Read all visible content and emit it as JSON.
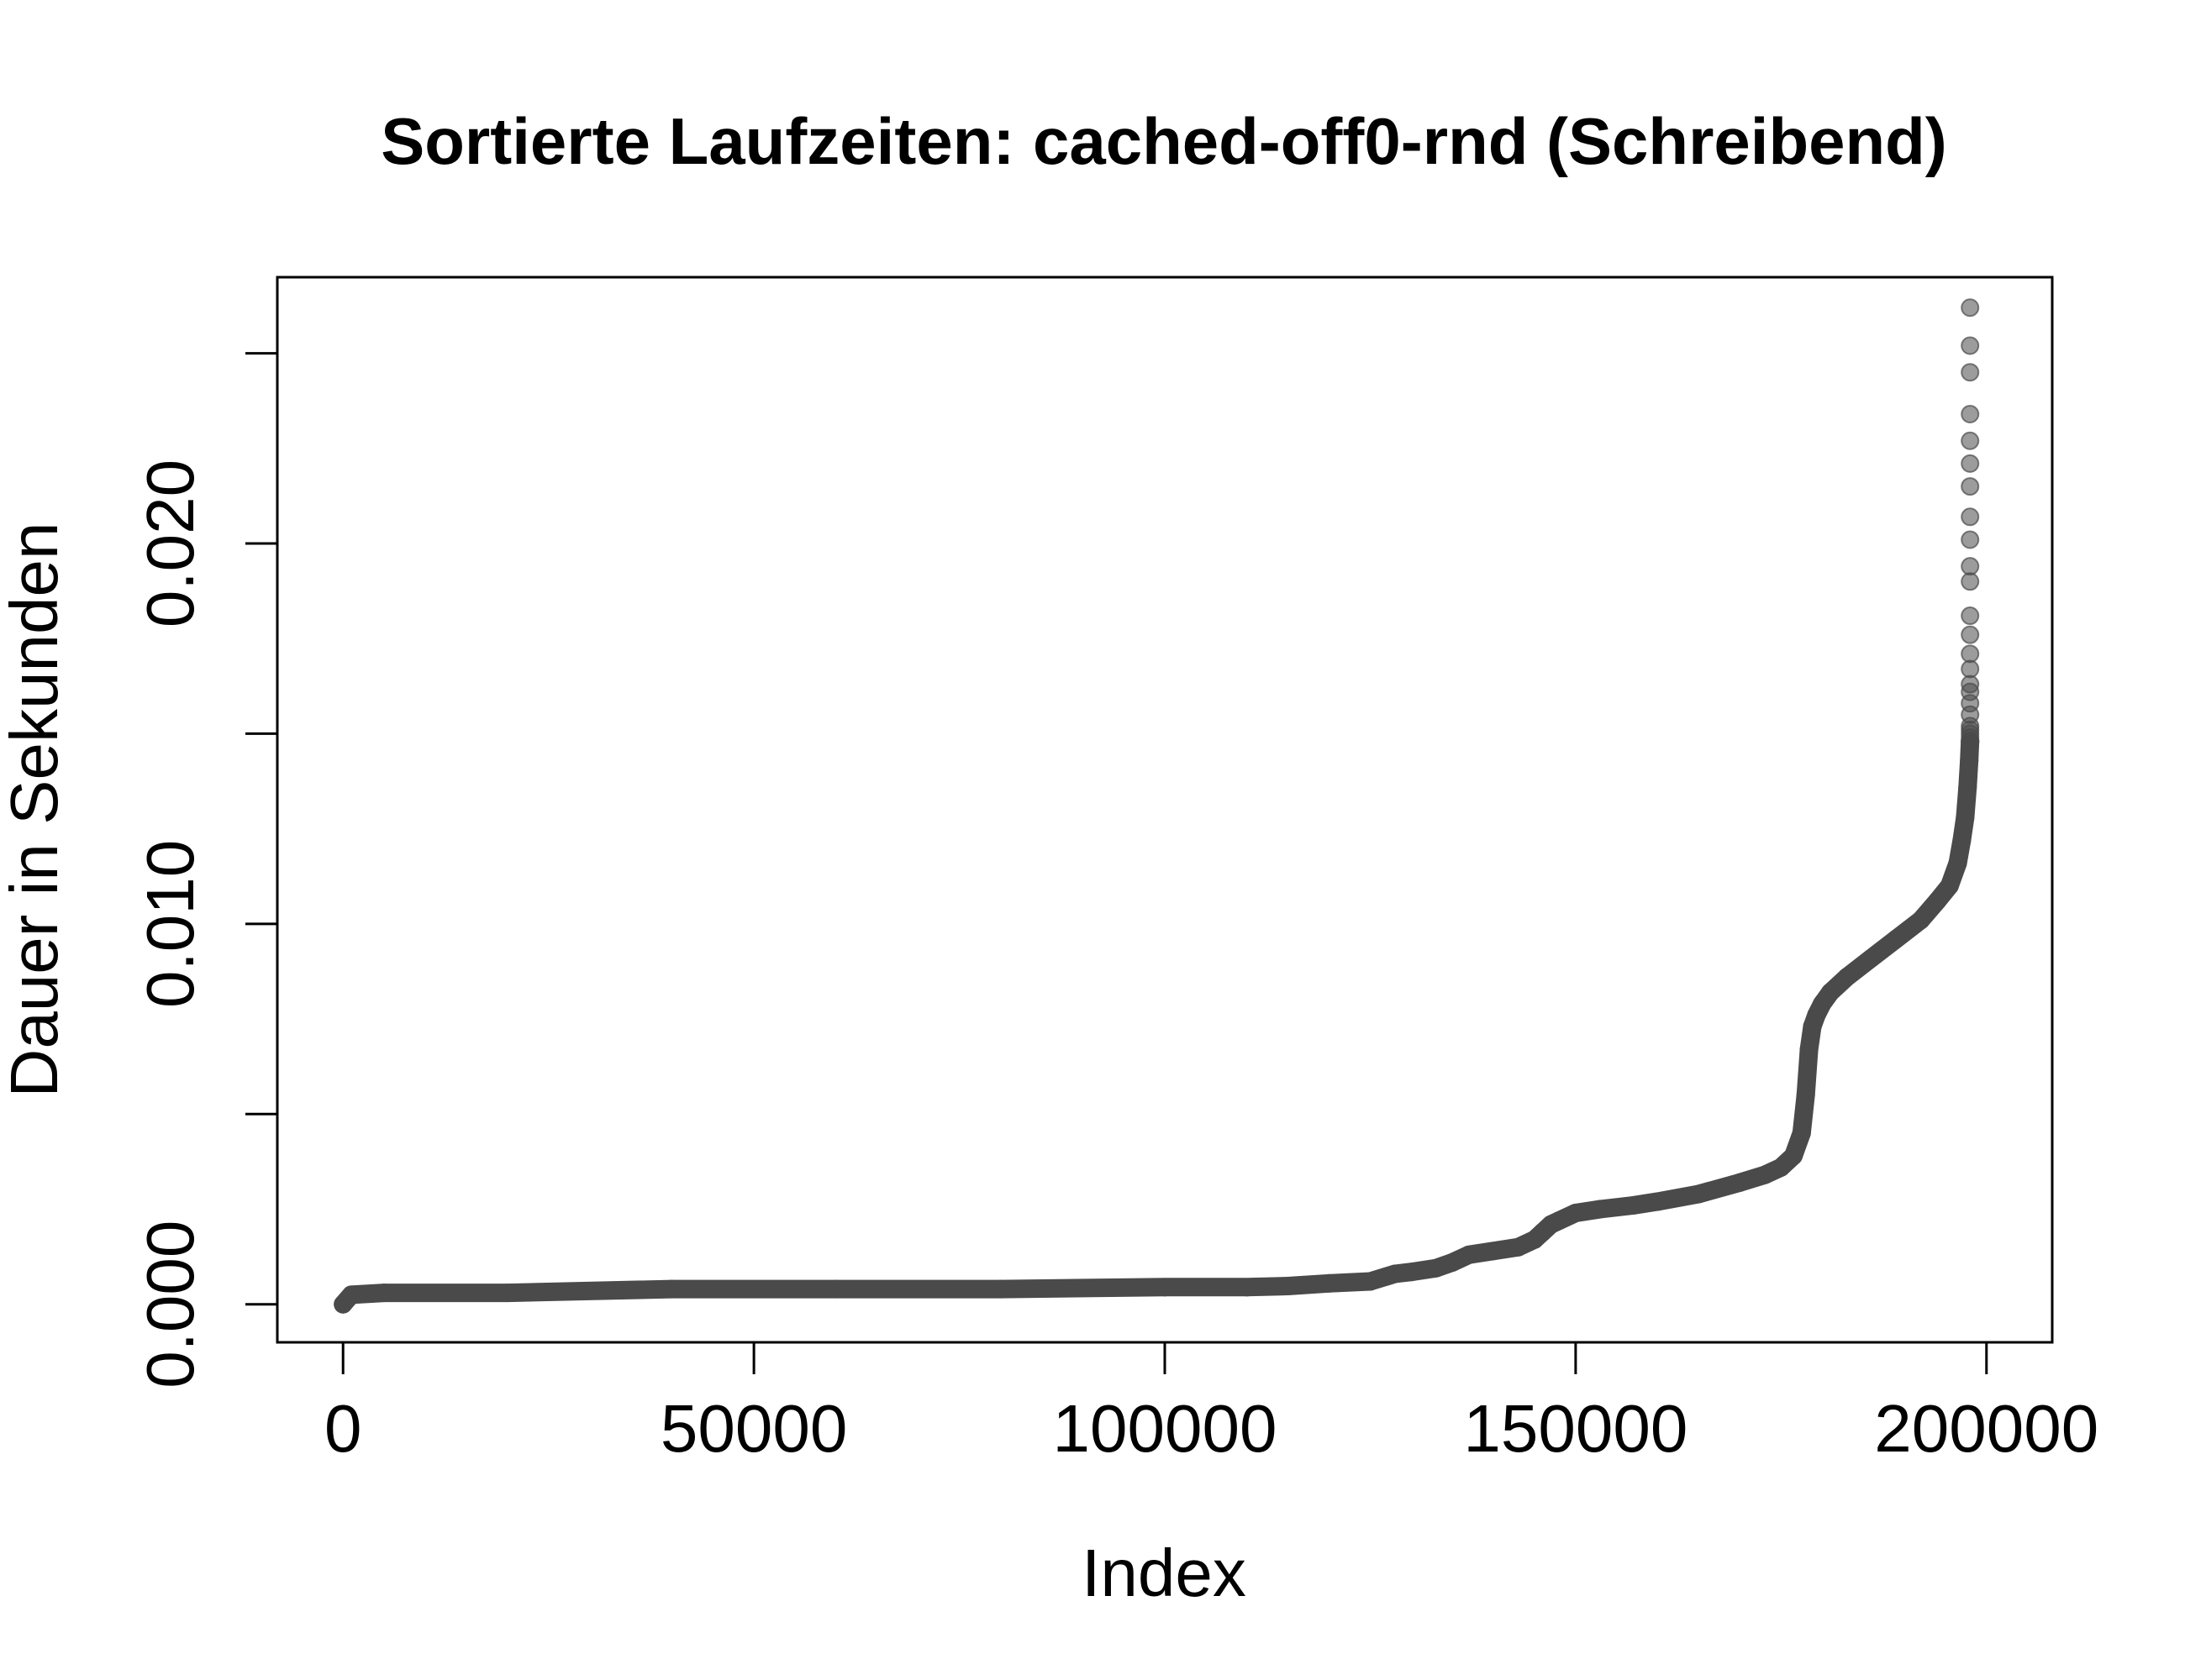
{
  "chart_data": {
    "type": "scatter",
    "title": "Sortierte Laufzeiten: cached-off0-rnd (Schreibend)",
    "xlabel": "Index",
    "ylabel": "Dauer in Sekunden",
    "xlim": [
      -8000,
      208000
    ],
    "ylim": [
      -0.001,
      0.027
    ],
    "x_ticks": [
      0,
      50000,
      100000,
      150000,
      200000
    ],
    "x_tick_labels": [
      "0",
      "50000",
      "100000",
      "150000",
      "200000"
    ],
    "y_ticks": [
      0.0,
      0.005,
      0.01,
      0.015,
      0.02,
      0.025
    ],
    "y_tick_labels": [
      "0.000",
      "",
      "0.010",
      "",
      "0.020",
      ""
    ],
    "grid": false,
    "legend": "none",
    "point_color": "#4a4a4a",
    "curve_points": {
      "x": [
        0,
        1000,
        5000,
        20000,
        40000,
        60000,
        80000,
        100000,
        110000,
        115000,
        120000,
        125000,
        128000,
        130000,
        133000,
        135000,
        137000,
        140000,
        143000,
        145000,
        146000,
        147000,
        148000,
        150000,
        153000,
        157000,
        160000,
        165000,
        170000,
        173000,
        175000,
        176500,
        177500,
        178000,
        178400,
        178800,
        179300,
        180000,
        181000,
        183000,
        186000,
        189000,
        192000,
        194000,
        195500,
        196500,
        197000,
        197400,
        197700,
        197900,
        198000
      ],
      "y": [
        0.0,
        0.00025,
        0.0003,
        0.0003,
        0.0004,
        0.0004,
        0.0004,
        0.00045,
        0.00045,
        0.00048,
        0.00055,
        0.0006,
        0.0008,
        0.00085,
        0.00095,
        0.0011,
        0.0013,
        0.0014,
        0.0015,
        0.0017,
        0.0019,
        0.0021,
        0.0022,
        0.0024,
        0.0025,
        0.0026,
        0.0027,
        0.0029,
        0.0032,
        0.0034,
        0.0036,
        0.0039,
        0.0045,
        0.0055,
        0.0067,
        0.0073,
        0.0076,
        0.0079,
        0.0082,
        0.0086,
        0.0091,
        0.0096,
        0.0101,
        0.0106,
        0.011,
        0.0116,
        0.0122,
        0.0128,
        0.0136,
        0.0143,
        0.0148
      ]
    },
    "outliers": {
      "x": [
        198000,
        198000,
        198000,
        198000,
        198000,
        198000,
        198000,
        198000,
        198000,
        198000,
        198000,
        198000,
        198000,
        198000,
        198000,
        198000,
        198000,
        198000,
        198000,
        198000,
        198000,
        198000,
        198000,
        198000
      ],
      "y": [
        0.0262,
        0.0252,
        0.0245,
        0.0234,
        0.0227,
        0.0221,
        0.0215,
        0.0207,
        0.0201,
        0.0194,
        0.019,
        0.0181,
        0.0176,
        0.0171,
        0.0167,
        0.0163,
        0.0161,
        0.0158,
        0.0155,
        0.0152,
        0.0151,
        0.015,
        0.0149,
        0.0148
      ]
    }
  }
}
